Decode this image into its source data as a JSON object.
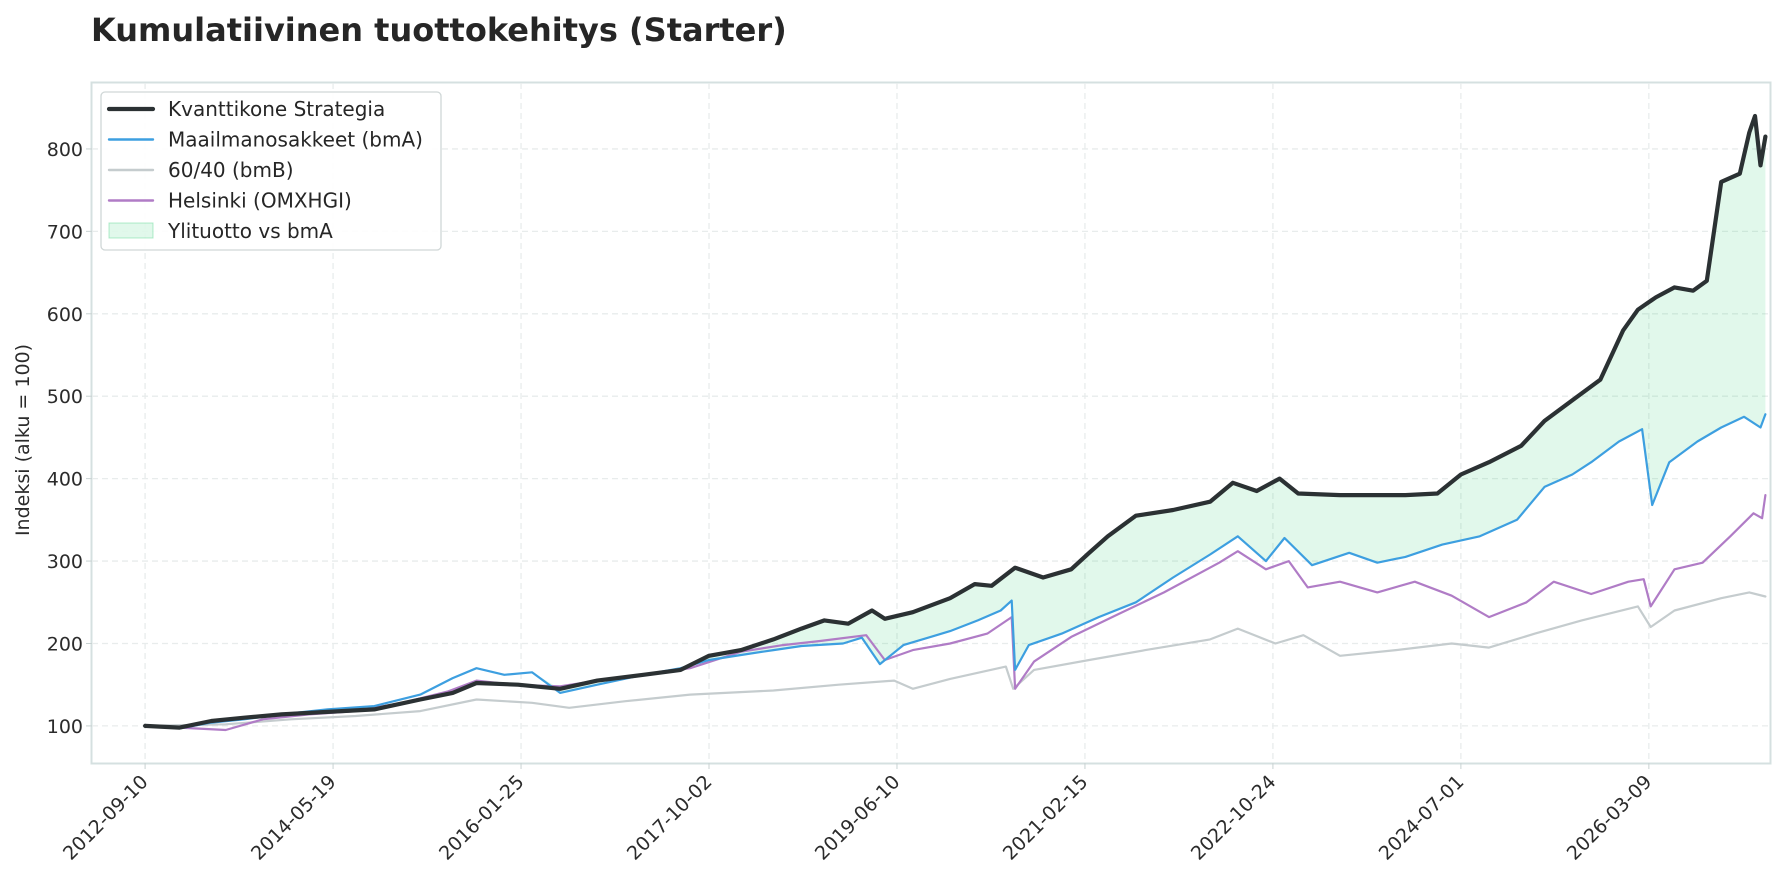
{
  "chart_data": {
    "type": "line",
    "title": "Kumulatiivinen tuottokehitys (Starter)",
    "xlabel": "",
    "ylabel": "Indeksi (alku = 100)",
    "ylim": [
      55,
      880
    ],
    "yticks": [
      100,
      200,
      300,
      400,
      500,
      600,
      700,
      800
    ],
    "xlim": [
      "2012-03-20",
      "2027-04-10"
    ],
    "xticks": [
      "2012-09-10",
      "2014-05-19",
      "2016-01-25",
      "2017-10-02",
      "2019-06-10",
      "2021-02-15",
      "2022-10-24",
      "2024-07-01",
      "2026-03-09"
    ],
    "grid": true,
    "legend_position": "top-left",
    "series": [
      {
        "name": "Kvanttikone Strategia",
        "color": "#2b3133",
        "style": "thick",
        "points": [
          [
            "2012-09-10",
            100
          ],
          [
            "2013-01-01",
            98
          ],
          [
            "2013-04-15",
            106
          ],
          [
            "2013-08-01",
            110
          ],
          [
            "2013-12-01",
            114
          ],
          [
            "2014-05-01",
            117
          ],
          [
            "2014-10-01",
            120
          ],
          [
            "2015-03-01",
            132
          ],
          [
            "2015-06-15",
            140
          ],
          [
            "2015-09-01",
            152
          ],
          [
            "2016-01-15",
            150
          ],
          [
            "2016-06-01",
            145
          ],
          [
            "2016-10-01",
            155
          ],
          [
            "2017-03-01",
            162
          ],
          [
            "2017-07-01",
            168
          ],
          [
            "2017-10-02",
            185
          ],
          [
            "2018-01-15",
            192
          ],
          [
            "2018-05-01",
            205
          ],
          [
            "2018-08-01",
            218
          ],
          [
            "2018-10-15",
            228
          ],
          [
            "2019-01-01",
            224
          ],
          [
            "2019-03-20",
            240
          ],
          [
            "2019-05-01",
            230
          ],
          [
            "2019-08-01",
            238
          ],
          [
            "2019-12-01",
            255
          ],
          [
            "2020-02-20",
            272
          ],
          [
            "2020-04-15",
            270
          ],
          [
            "2020-07-01",
            292
          ],
          [
            "2020-10-01",
            280
          ],
          [
            "2021-01-01",
            290
          ],
          [
            "2021-03-01",
            310
          ],
          [
            "2021-05-01",
            330
          ],
          [
            "2021-08-01",
            355
          ],
          [
            "2021-12-01",
            362
          ],
          [
            "2022-04-01",
            372
          ],
          [
            "2022-06-15",
            395
          ],
          [
            "2022-09-01",
            385
          ],
          [
            "2022-11-15",
            400
          ],
          [
            "2023-01-15",
            382
          ],
          [
            "2023-06-01",
            380
          ],
          [
            "2024-01-01",
            380
          ],
          [
            "2024-04-15",
            382
          ],
          [
            "2024-07-01",
            405
          ],
          [
            "2024-10-01",
            420
          ],
          [
            "2025-01-15",
            440
          ],
          [
            "2025-04-01",
            470
          ],
          [
            "2025-07-01",
            495
          ],
          [
            "2025-10-01",
            520
          ],
          [
            "2025-12-15",
            580
          ],
          [
            "2026-02-01",
            605
          ],
          [
            "2026-04-01",
            620
          ],
          [
            "2026-06-01",
            632
          ],
          [
            "2026-08-01",
            628
          ],
          [
            "2026-09-15",
            640
          ],
          [
            "2026-11-01",
            760
          ],
          [
            "2027-01-01",
            770
          ],
          [
            "2027-02-01",
            820
          ],
          [
            "2027-02-20",
            840
          ],
          [
            "2027-03-10",
            780
          ],
          [
            "2027-03-26",
            815
          ]
        ]
      },
      {
        "name": "Maailmanosakkeet (bmA)",
        "color": "#3d9fe0",
        "style": "normal",
        "points": [
          [
            "2012-09-10",
            100
          ],
          [
            "2013-01-01",
            97
          ],
          [
            "2013-04-15",
            104
          ],
          [
            "2013-08-01",
            108
          ],
          [
            "2013-12-01",
            114
          ],
          [
            "2014-05-01",
            120
          ],
          [
            "2014-10-01",
            124
          ],
          [
            "2015-03-01",
            138
          ],
          [
            "2015-06-15",
            158
          ],
          [
            "2015-09-01",
            170
          ],
          [
            "2015-12-01",
            162
          ],
          [
            "2016-03-01",
            165
          ],
          [
            "2016-06-01",
            140
          ],
          [
            "2016-10-01",
            150
          ],
          [
            "2017-03-01",
            162
          ],
          [
            "2017-07-01",
            170
          ],
          [
            "2017-10-02",
            180
          ],
          [
            "2018-01-15",
            186
          ],
          [
            "2018-05-01",
            192
          ],
          [
            "2018-08-01",
            197
          ],
          [
            "2018-12-15",
            200
          ],
          [
            "2019-02-15",
            207
          ],
          [
            "2019-04-15",
            175
          ],
          [
            "2019-07-01",
            198
          ],
          [
            "2019-12-01",
            215
          ],
          [
            "2020-03-01",
            228
          ],
          [
            "2020-05-15",
            240
          ],
          [
            "2020-06-20",
            252
          ],
          [
            "2020-07-01",
            168
          ],
          [
            "2020-08-15",
            198
          ],
          [
            "2020-12-01",
            212
          ],
          [
            "2021-04-01",
            232
          ],
          [
            "2021-08-01",
            250
          ],
          [
            "2021-12-01",
            280
          ],
          [
            "2022-04-01",
            308
          ],
          [
            "2022-07-01",
            330
          ],
          [
            "2022-10-01",
            300
          ],
          [
            "2022-12-01",
            328
          ],
          [
            "2023-03-01",
            295
          ],
          [
            "2023-07-01",
            310
          ],
          [
            "2023-10-01",
            298
          ],
          [
            "2024-01-01",
            305
          ],
          [
            "2024-05-01",
            320
          ],
          [
            "2024-09-01",
            330
          ],
          [
            "2025-01-01",
            350
          ],
          [
            "2025-04-01",
            390
          ],
          [
            "2025-07-01",
            405
          ],
          [
            "2025-09-01",
            420
          ],
          [
            "2025-12-01",
            445
          ],
          [
            "2026-02-15",
            460
          ],
          [
            "2026-03-20",
            368
          ],
          [
            "2026-05-15",
            420
          ],
          [
            "2026-08-15",
            445
          ],
          [
            "2026-11-01",
            462
          ],
          [
            "2027-01-15",
            475
          ],
          [
            "2027-03-10",
            462
          ],
          [
            "2027-03-26",
            478
          ]
        ]
      },
      {
        "name": "60/40 (bmB)",
        "color": "#c5ccce",
        "style": "normal",
        "points": [
          [
            "2012-09-10",
            100
          ],
          [
            "2013-06-01",
            102
          ],
          [
            "2014-01-01",
            108
          ],
          [
            "2014-08-01",
            112
          ],
          [
            "2015-03-01",
            118
          ],
          [
            "2015-09-01",
            132
          ],
          [
            "2016-03-01",
            128
          ],
          [
            "2016-07-01",
            122
          ],
          [
            "2017-01-01",
            130
          ],
          [
            "2017-08-01",
            138
          ],
          [
            "2018-05-01",
            143
          ],
          [
            "2018-12-01",
            150
          ],
          [
            "2019-06-01",
            155
          ],
          [
            "2019-08-01",
            145
          ],
          [
            "2019-12-01",
            157
          ],
          [
            "2020-06-01",
            172
          ],
          [
            "2020-06-25",
            145
          ],
          [
            "2020-09-01",
            168
          ],
          [
            "2021-03-01",
            180
          ],
          [
            "2021-09-01",
            192
          ],
          [
            "2022-04-01",
            205
          ],
          [
            "2022-07-01",
            218
          ],
          [
            "2022-11-01",
            200
          ],
          [
            "2023-02-01",
            210
          ],
          [
            "2023-06-01",
            185
          ],
          [
            "2023-12-01",
            192
          ],
          [
            "2024-06-01",
            200
          ],
          [
            "2024-10-01",
            195
          ],
          [
            "2025-03-01",
            212
          ],
          [
            "2025-08-01",
            228
          ],
          [
            "2026-02-01",
            245
          ],
          [
            "2026-03-15",
            220
          ],
          [
            "2026-06-01",
            240
          ],
          [
            "2026-11-01",
            255
          ],
          [
            "2027-02-01",
            262
          ],
          [
            "2027-03-26",
            257
          ]
        ]
      },
      {
        "name": "Helsinki (OMXHGI)",
        "color": "#b07cc6",
        "style": "normal",
        "points": [
          [
            "2012-09-10",
            100
          ],
          [
            "2013-01-01",
            98
          ],
          [
            "2013-06-01",
            95
          ],
          [
            "2013-10-01",
            108
          ],
          [
            "2014-03-01",
            114
          ],
          [
            "2014-08-01",
            118
          ],
          [
            "2015-01-01",
            128
          ],
          [
            "2015-06-01",
            142
          ],
          [
            "2015-09-01",
            155
          ],
          [
            "2016-01-01",
            150
          ],
          [
            "2016-06-01",
            148
          ],
          [
            "2016-10-01",
            155
          ],
          [
            "2017-03-01",
            162
          ],
          [
            "2017-08-01",
            170
          ],
          [
            "2018-01-15",
            190
          ],
          [
            "2018-06-01",
            198
          ],
          [
            "2018-10-01",
            203
          ],
          [
            "2019-03-01",
            210
          ],
          [
            "2019-05-01",
            180
          ],
          [
            "2019-08-01",
            192
          ],
          [
            "2019-12-01",
            200
          ],
          [
            "2020-04-01",
            212
          ],
          [
            "2020-06-20",
            232
          ],
          [
            "2020-07-01",
            145
          ],
          [
            "2020-09-01",
            178
          ],
          [
            "2021-01-01",
            208
          ],
          [
            "2021-06-01",
            235
          ],
          [
            "2021-11-01",
            262
          ],
          [
            "2022-05-01",
            298
          ],
          [
            "2022-07-01",
            312
          ],
          [
            "2022-10-01",
            290
          ],
          [
            "2022-12-15",
            300
          ],
          [
            "2023-02-15",
            268
          ],
          [
            "2023-06-01",
            275
          ],
          [
            "2023-10-01",
            262
          ],
          [
            "2024-02-01",
            275
          ],
          [
            "2024-06-01",
            258
          ],
          [
            "2024-10-01",
            232
          ],
          [
            "2025-02-01",
            250
          ],
          [
            "2025-05-01",
            275
          ],
          [
            "2025-09-01",
            260
          ],
          [
            "2026-01-01",
            275
          ],
          [
            "2026-02-20",
            278
          ],
          [
            "2026-03-15",
            245
          ],
          [
            "2026-06-01",
            290
          ],
          [
            "2026-09-01",
            298
          ],
          [
            "2026-12-01",
            330
          ],
          [
            "2027-02-15",
            358
          ],
          [
            "2027-03-15",
            352
          ],
          [
            "2027-03-26",
            380
          ]
        ]
      }
    ],
    "fill_between": {
      "name": "Ylituotto vs bmA",
      "upper": "Kvanttikone Strategia",
      "lower": "Maailmanosakkeet (bmA)",
      "color": "#2ecc71",
      "opacity": 0.14
    }
  }
}
